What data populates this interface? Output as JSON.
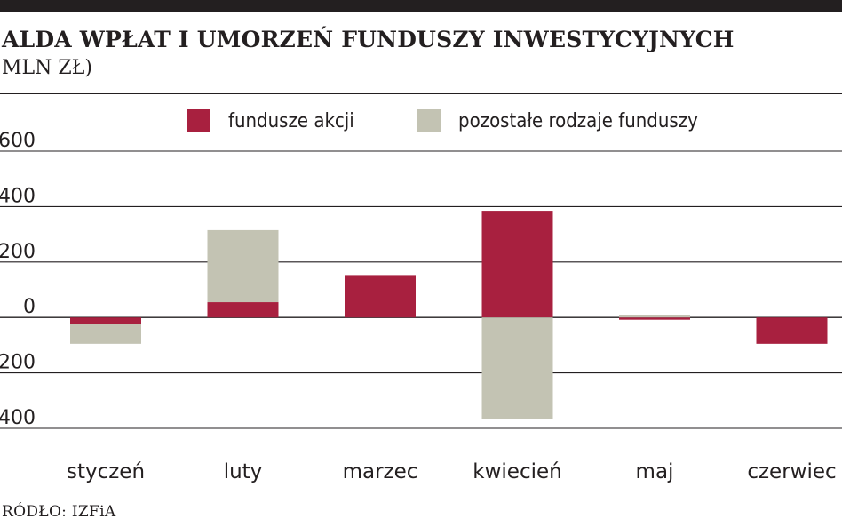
{
  "header": {
    "title": "ALDA WPŁAT I UMORZEŃ FUNDUSZY INWESTYCYJNYCH",
    "subtitle": "MLN ZŁ)"
  },
  "source": "RÓDŁO: IZFiA",
  "chart_data": {
    "type": "bar",
    "stacked": true,
    "categories": [
      "styczeń",
      "luty",
      "marzec",
      "kwiecień",
      "maj",
      "czerwiec"
    ],
    "series": [
      {
        "name": "fundusze akcji",
        "color": "#a8203f",
        "values": [
          -25,
          55,
          150,
          385,
          -8,
          -95
        ]
      },
      {
        "name": "pozostałe rodzaje funduszy",
        "color": "#c3c3b3",
        "values": [
          -70,
          260,
          0,
          -365,
          8,
          0
        ]
      }
    ],
    "ylim": [
      -400,
      600
    ],
    "yticks": [
      600,
      400,
      200,
      0,
      -200,
      -400
    ],
    "ytick_labels": [
      "600",
      "400",
      "200",
      "0",
      "200",
      "400"
    ],
    "grid": true,
    "legend_position": "top"
  }
}
